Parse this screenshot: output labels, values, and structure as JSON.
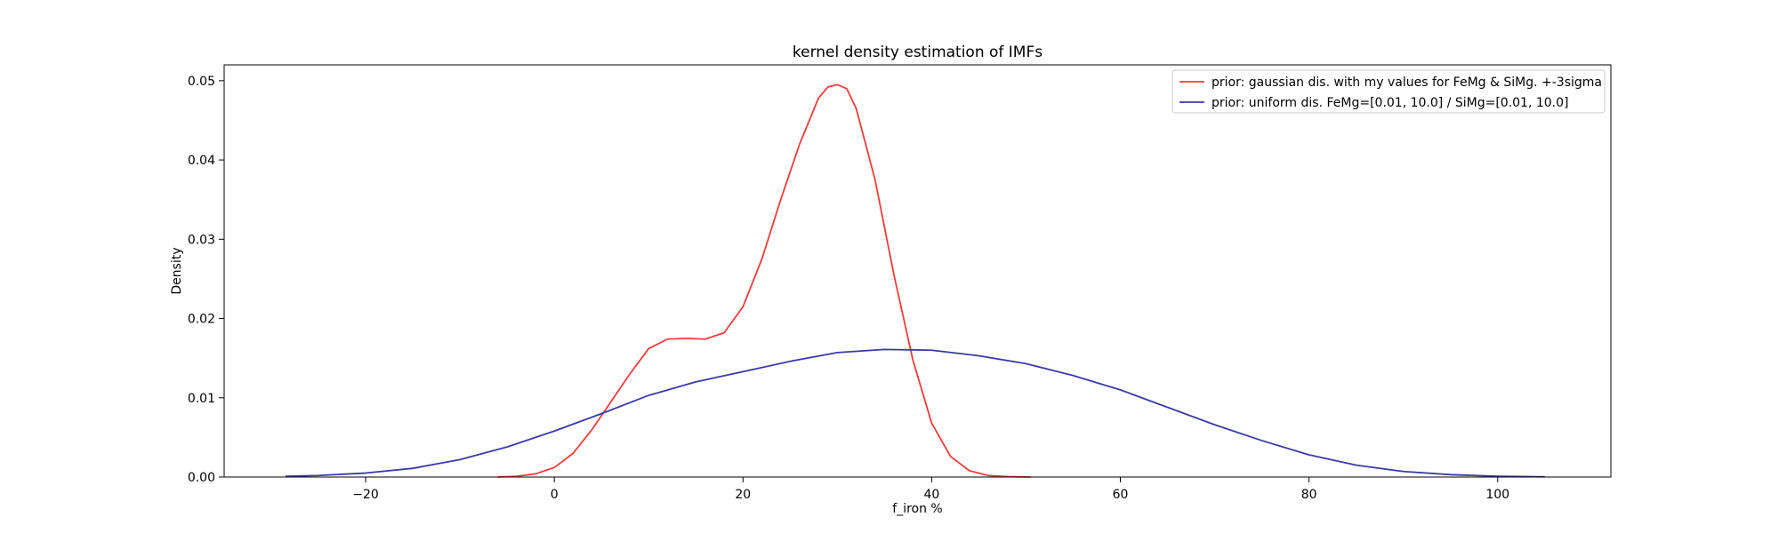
{
  "chart_data": {
    "type": "line",
    "title": "kernel density estimation of IMFs",
    "xlabel": "f_iron %",
    "ylabel": "Density",
    "xlim": [
      -35,
      112
    ],
    "ylim": [
      0,
      0.052
    ],
    "xticks": [
      -20,
      0,
      20,
      40,
      60,
      80,
      100
    ],
    "xtick_labels": [
      "−20",
      "0",
      "20",
      "40",
      "60",
      "80",
      "100"
    ],
    "yticks": [
      0.0,
      0.01,
      0.02,
      0.03,
      0.04,
      0.05
    ],
    "ytick_labels": [
      "0.00",
      "0.01",
      "0.02",
      "0.03",
      "0.04",
      "0.05"
    ],
    "grid": false,
    "legend_position": "top-right",
    "series": [
      {
        "name": "prior: gaussian dis. with my values for FeMg & SiMg. +-3sigma",
        "color": "#f03c3c",
        "x": [
          -6,
          -4,
          -2,
          0,
          2,
          4,
          6,
          8,
          10,
          12,
          14,
          16,
          18,
          20,
          22,
          24,
          26,
          28,
          29,
          30,
          31,
          32,
          34,
          36,
          38,
          40,
          42,
          44,
          46,
          48,
          50.5
        ],
        "y": [
          0.0,
          0.0001,
          0.0004,
          0.0012,
          0.003,
          0.006,
          0.0095,
          0.013,
          0.0162,
          0.0174,
          0.0175,
          0.0174,
          0.0182,
          0.0215,
          0.0275,
          0.035,
          0.042,
          0.0478,
          0.0492,
          0.0495,
          0.049,
          0.0465,
          0.0375,
          0.0255,
          0.0148,
          0.0068,
          0.0026,
          0.0008,
          0.0002,
          5e-05,
          0.0
        ]
      },
      {
        "name": "prior: uniform dis. FeMg=[0.01, 10.0] / SiMg=[0.01, 10.0]",
        "color": "#3a3aa8",
        "x": [
          -28.5,
          -25,
          -20,
          -15,
          -10,
          -5,
          0,
          5,
          10,
          15,
          20,
          25,
          30,
          35,
          40,
          45,
          50,
          55,
          60,
          65,
          70,
          75,
          80,
          85,
          90,
          95,
          100,
          105
        ],
        "y": [
          0.0001,
          0.0002,
          0.0005,
          0.0011,
          0.0022,
          0.0038,
          0.0058,
          0.008,
          0.0103,
          0.012,
          0.0133,
          0.0146,
          0.0157,
          0.0161,
          0.016,
          0.0153,
          0.0143,
          0.0128,
          0.011,
          0.0088,
          0.0066,
          0.0046,
          0.0028,
          0.0015,
          0.0007,
          0.0003,
          0.0001,
          3e-05
        ]
      }
    ]
  }
}
